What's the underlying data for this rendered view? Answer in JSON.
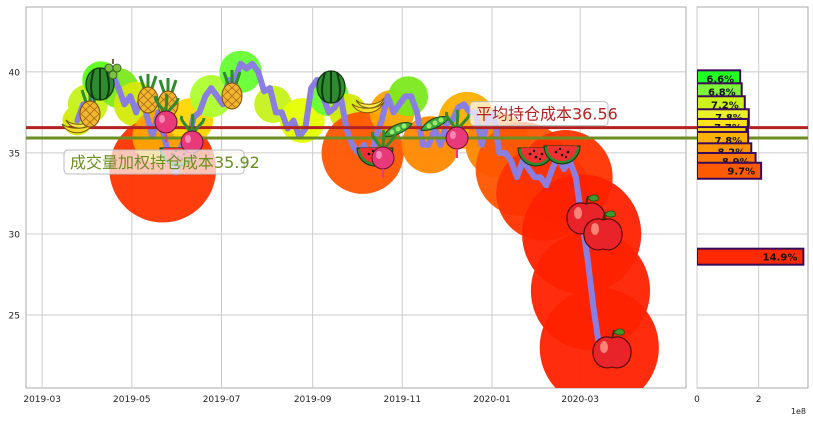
{
  "chart_data": [
    {
      "type": "line",
      "title": "",
      "xlabel": "",
      "ylabel": "",
      "x_tick_labels": [
        "2019-03",
        "2019-05",
        "2019-07",
        "2019-09",
        "2019-11",
        "2020-01",
        "2020-03"
      ],
      "y_ticks": [
        25,
        30,
        35,
        40
      ],
      "ylim": [
        20.5,
        44
      ],
      "grid": true,
      "series": [
        {
          "values": [
            [
              "2019-03-25",
              37.0
            ],
            [
              "2019-03-29",
              38.0
            ],
            [
              "2019-04-02",
              37.5
            ],
            [
              "2019-04-06",
              38.7
            ],
            [
              "2019-04-10",
              39.8
            ],
            [
              "2019-04-14",
              40.2
            ],
            [
              "2019-04-18",
              39.8
            ],
            [
              "2019-04-22",
              39.0
            ],
            [
              "2019-04-26",
              38.0
            ],
            [
              "2019-04-30",
              38.5
            ],
            [
              "2019-05-04",
              37.5
            ],
            [
              "2019-05-08",
              38.5
            ],
            [
              "2019-05-12",
              37.0
            ],
            [
              "2019-05-15",
              36.0
            ],
            [
              "2019-05-19",
              37.5
            ],
            [
              "2019-05-23",
              36.0
            ],
            [
              "2019-05-27",
              34.5
            ],
            [
              "2019-05-31",
              33.8
            ],
            [
              "2019-06-04",
              35.5
            ],
            [
              "2019-06-08",
              35.5
            ],
            [
              "2019-06-12",
              37.2
            ],
            [
              "2019-06-16",
              37.5
            ],
            [
              "2019-06-20",
              38.5
            ],
            [
              "2019-06-24",
              39.0
            ],
            [
              "2019-06-28",
              38.5
            ],
            [
              "2019-07-02",
              38.0
            ],
            [
              "2019-07-06",
              39.5
            ],
            [
              "2019-07-10",
              39.5
            ],
            [
              "2019-07-14",
              40.5
            ],
            [
              "2019-07-18",
              40.2
            ],
            [
              "2019-07-22",
              40.5
            ],
            [
              "2019-07-26",
              40.0
            ],
            [
              "2019-07-30",
              38.8
            ],
            [
              "2019-08-03",
              39.0
            ],
            [
              "2019-08-07",
              37.5
            ],
            [
              "2019-08-11",
              37.5
            ],
            [
              "2019-08-15",
              36.5
            ],
            [
              "2019-08-19",
              37.0
            ],
            [
              "2019-08-23",
              36.0
            ],
            [
              "2019-08-27",
              36.5
            ],
            [
              "2019-08-31",
              39.0
            ],
            [
              "2019-09-04",
              39.5
            ],
            [
              "2019-09-08",
              38.5
            ],
            [
              "2019-09-12",
              37.5
            ],
            [
              "2019-09-16",
              37.8
            ],
            [
              "2019-09-20",
              38.5
            ],
            [
              "2019-09-24",
              36.5
            ],
            [
              "2019-09-28",
              35.5
            ],
            [
              "2019-10-02",
              35.0
            ],
            [
              "2019-10-06",
              35.5
            ],
            [
              "2019-10-10",
              34.5
            ],
            [
              "2019-10-14",
              36.0
            ],
            [
              "2019-10-18",
              37.0
            ],
            [
              "2019-10-22",
              38.5
            ],
            [
              "2019-10-26",
              37.5
            ],
            [
              "2019-10-30",
              38.0
            ],
            [
              "2019-11-03",
              38.5
            ],
            [
              "2019-11-07",
              38.5
            ],
            [
              "2019-11-11",
              37.5
            ],
            [
              "2019-11-15",
              35.5
            ],
            [
              "2019-11-19",
              35.5
            ],
            [
              "2019-11-23",
              36.5
            ],
            [
              "2019-11-27",
              35.5
            ],
            [
              "2019-12-01",
              36.8
            ],
            [
              "2019-12-05",
              37.0
            ],
            [
              "2019-12-09",
              37.8
            ],
            [
              "2019-12-13",
              38.0
            ],
            [
              "2019-12-17",
              37.5
            ],
            [
              "2019-12-21",
              37.5
            ],
            [
              "2019-12-25",
              35.5
            ],
            [
              "2019-12-29",
              37.0
            ],
            [
              "2020-01-02",
              37.5
            ],
            [
              "2020-01-06",
              35.0
            ],
            [
              "2020-01-10",
              35.0
            ],
            [
              "2020-01-14",
              34.5
            ],
            [
              "2020-01-18",
              33.5
            ],
            [
              "2020-01-22",
              34.5
            ],
            [
              "2020-01-26",
              34.0
            ],
            [
              "2020-01-30",
              33.5
            ],
            [
              "2020-02-03",
              33.5
            ],
            [
              "2020-02-07",
              33.0
            ],
            [
              "2020-02-11",
              34.0
            ],
            [
              "2020-02-15",
              34.8
            ],
            [
              "2020-02-19",
              34.0
            ],
            [
              "2020-02-23",
              34.5
            ],
            [
              "2020-02-27",
              33.5
            ],
            [
              "2020-03-02",
              31.0
            ],
            [
              "2020-03-06",
              28.5
            ],
            [
              "2020-03-10",
              25.5
            ],
            [
              "2020-03-14",
              23.0
            ]
          ]
        }
      ],
      "hlines": [
        {
          "label": "平均持仓成本36.56",
          "value": 36.56,
          "color": "#b22222"
        },
        {
          "label": "成交量加权持仓成本35.92",
          "value": 35.92,
          "color": "#6b8e23"
        }
      ],
      "clusters": [
        {
          "x": "2019-03-25",
          "y": 37.0,
          "size": 0.08,
          "color": "#d4e90a"
        },
        {
          "x": "2019-04-01",
          "y": 38.0,
          "size": 0.16,
          "color": "#c6f21a"
        },
        {
          "x": "2019-04-10",
          "y": 39.5,
          "size": 0.14,
          "color": "#5cfc1b"
        },
        {
          "x": "2019-04-22",
          "y": 39.0,
          "size": 0.16,
          "color": "#7be91c"
        },
        {
          "x": "2019-05-04",
          "y": 38.0,
          "size": 0.2,
          "color": "#d4e90a"
        },
        {
          "x": "2019-05-22",
          "y": 34.0,
          "size": 0.7,
          "color": "#ff3300"
        },
        {
          "x": "2019-05-20",
          "y": 36.0,
          "size": 0.28,
          "color": "#ffa500"
        },
        {
          "x": "2019-06-10",
          "y": 37.0,
          "size": 0.2,
          "color": "#ffd700"
        },
        {
          "x": "2019-06-24",
          "y": 38.5,
          "size": 0.18,
          "color": "#adff2f"
        },
        {
          "x": "2019-07-14",
          "y": 40.0,
          "size": 0.18,
          "color": "#66ff33"
        },
        {
          "x": "2019-08-05",
          "y": 38.0,
          "size": 0.14,
          "color": "#c6f21a"
        },
        {
          "x": "2019-08-25",
          "y": 37.0,
          "size": 0.2,
          "color": "#e6ff00"
        },
        {
          "x": "2019-09-12",
          "y": 38.5,
          "size": 0.16,
          "color": "#66ff33"
        },
        {
          "x": "2019-09-25",
          "y": 37.5,
          "size": 0.14,
          "color": "#d4e90a"
        },
        {
          "x": "2019-10-05",
          "y": 35.0,
          "size": 0.5,
          "color": "#ff5500"
        },
        {
          "x": "2019-10-25",
          "y": 37.5,
          "size": 0.2,
          "color": "#ffa500"
        },
        {
          "x": "2019-11-05",
          "y": 38.5,
          "size": 0.16,
          "color": "#7be91c"
        },
        {
          "x": "2019-11-20",
          "y": 35.5,
          "size": 0.3,
          "color": "#ff8800"
        },
        {
          "x": "2019-12-15",
          "y": 37.0,
          "size": 0.3,
          "color": "#ffb000"
        },
        {
          "x": "2020-01-05",
          "y": 35.5,
          "size": 0.36,
          "color": "#ff8800"
        },
        {
          "x": "2020-01-22",
          "y": 34.0,
          "size": 0.6,
          "color": "#ff5500"
        },
        {
          "x": "2020-02-05",
          "y": 32.5,
          "size": 0.6,
          "color": "#ff3300"
        },
        {
          "x": "2020-02-20",
          "y": 33.5,
          "size": 0.6,
          "color": "#ff3300"
        },
        {
          "x": "2020-03-02",
          "y": 30.0,
          "size": 0.8,
          "color": "#ff2200"
        },
        {
          "x": "2020-03-08",
          "y": 26.5,
          "size": 0.8,
          "color": "#ff2200"
        },
        {
          "x": "2020-03-14",
          "y": 23.0,
          "size": 0.8,
          "color": "#ff2200"
        }
      ]
    },
    {
      "type": "bar",
      "orientation": "horizontal",
      "xlabel": "",
      "xlim": [
        0,
        3.6
      ],
      "x_tick_labels": [
        "0",
        "2"
      ],
      "offset_text": "1e8",
      "grid": true,
      "bars": [
        {
          "label": "6.6%",
          "y": 39.6,
          "value": 1.4,
          "color": "#22ff22"
        },
        {
          "label": "6.8%",
          "y": 38.8,
          "value": 1.45,
          "color": "#7ff23a"
        },
        {
          "label": "7.2%",
          "y": 38.0,
          "value": 1.55,
          "color": "#ccf21a"
        },
        {
          "label": "7.8%",
          "y": 37.2,
          "value": 1.68,
          "color": "#e9f02a"
        },
        {
          "label": "7.7%",
          "y": 36.6,
          "value": 1.65,
          "color": "#ffe21a"
        },
        {
          "label": "7.5%",
          "y": 36.1,
          "value": 1.6,
          "color": "#ffd400"
        },
        {
          "label": "6.7%",
          "y": 35.5,
          "value": 1.42,
          "color": "#ffc000"
        },
        {
          "label": "7.8%",
          "y": 35.8,
          "value": 1.66,
          "color": "#ffb000"
        },
        {
          "label": "8.2%",
          "y": 35.1,
          "value": 1.76,
          "color": "#ff9500"
        },
        {
          "label": "8.9%",
          "y": 34.5,
          "value": 1.9,
          "color": "#ff7a00"
        },
        {
          "label": "9.7%",
          "y": 33.9,
          "value": 2.08,
          "color": "#ff5a00"
        },
        {
          "label": "14.9%",
          "y": 28.6,
          "value": 3.45,
          "color": "#ff2a00"
        }
      ]
    }
  ],
  "colors": {
    "line": "#8a7ee0",
    "grid": "#cccccc",
    "axes_edge": "#aaaaaa",
    "tick_text": "#222222",
    "bar_edge": "#3a0a5a"
  },
  "icons": [
    "watermelon-icon",
    "banana-icon",
    "pineapple-icon",
    "radish-icon",
    "pear-icon",
    "apple-icon",
    "grape-icon",
    "peapod-icon"
  ]
}
